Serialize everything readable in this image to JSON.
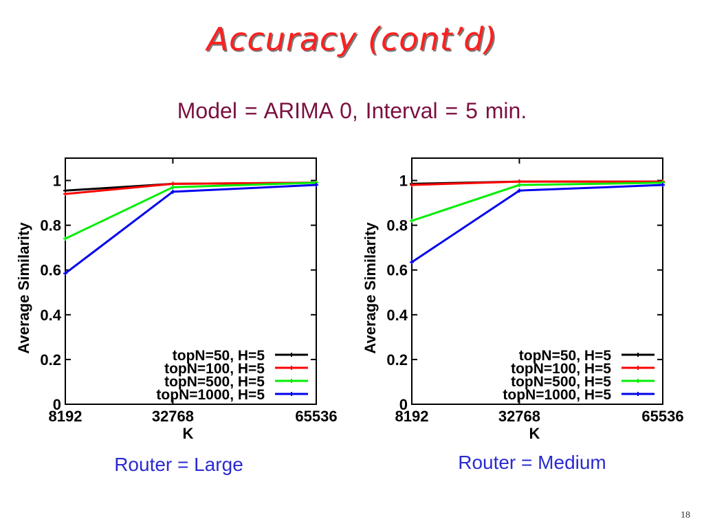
{
  "slide": {
    "title": "Accuracy (cont’d)",
    "subtitle": "Model = ARIMA 0,  Interval = 5 min.",
    "page_number": "18"
  },
  "chart_data": [
    {
      "type": "line",
      "caption": "Router = Large",
      "xlabel": "K",
      "ylabel": "Average Similarity",
      "x": [
        8192,
        32768,
        65536
      ],
      "x_tick_labels": [
        "8192",
        "32768",
        "65536"
      ],
      "y_ticks": [
        0,
        0.2,
        0.4,
        0.6,
        0.8,
        1
      ],
      "y_tick_labels": [
        "0",
        "0.2",
        "0.4",
        "0.6",
        "0.8",
        "1"
      ],
      "xlim": [
        8192,
        65536
      ],
      "ylim": [
        0,
        1.1
      ],
      "legend_position": "bottom-right",
      "series": [
        {
          "name": "topN=50, H=5",
          "color": "#000000",
          "values": [
            0.955,
            0.985,
            0.99
          ]
        },
        {
          "name": "topN=100, H=5",
          "color": "#ff0000",
          "values": [
            0.94,
            0.985,
            0.99
          ]
        },
        {
          "name": "topN=500, H=5",
          "color": "#00ee00",
          "values": [
            0.74,
            0.97,
            0.99
          ]
        },
        {
          "name": "topN=1000, H=5",
          "color": "#0000ee",
          "values": [
            0.585,
            0.95,
            0.98
          ]
        }
      ]
    },
    {
      "type": "line",
      "caption": "Router = Medium",
      "xlabel": "K",
      "ylabel": "Average Similarity",
      "x": [
        8192,
        32768,
        65536
      ],
      "x_tick_labels": [
        "8192",
        "32768",
        "65536"
      ],
      "y_ticks": [
        0,
        0.2,
        0.4,
        0.6,
        0.8,
        1
      ],
      "y_tick_labels": [
        "0",
        "0.2",
        "0.4",
        "0.6",
        "0.8",
        "1"
      ],
      "xlim": [
        8192,
        65536
      ],
      "ylim": [
        0,
        1.1
      ],
      "legend_position": "bottom-right",
      "series": [
        {
          "name": "topN=50, H=5",
          "color": "#000000",
          "values": [
            0.985,
            0.995,
            0.995
          ]
        },
        {
          "name": "topN=100, H=5",
          "color": "#ff0000",
          "values": [
            0.98,
            0.995,
            0.995
          ]
        },
        {
          "name": "topN=500, H=5",
          "color": "#00ee00",
          "values": [
            0.82,
            0.98,
            0.99
          ]
        },
        {
          "name": "topN=1000, H=5",
          "color": "#0000ee",
          "values": [
            0.635,
            0.955,
            0.98
          ]
        }
      ]
    }
  ]
}
